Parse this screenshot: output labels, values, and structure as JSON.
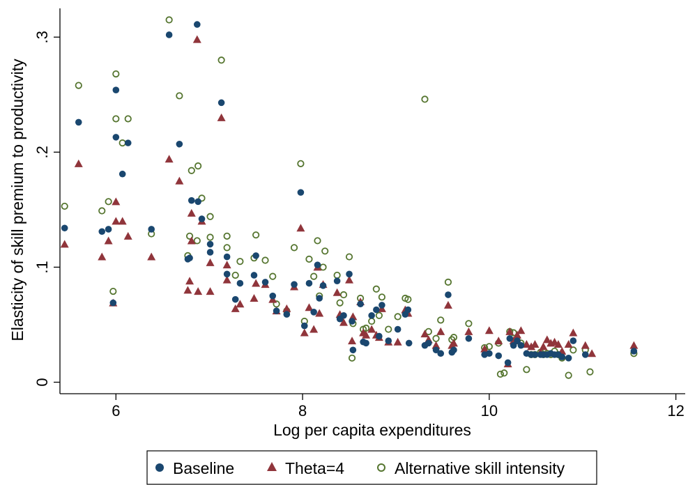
{
  "chart_data": {
    "type": "scatter",
    "xlabel": "Log per capita expenditures",
    "ylabel": "Elasticity of skill premium to productivity",
    "xlim": [
      5.4,
      12.1
    ],
    "ylim": [
      -0.01,
      0.325
    ],
    "xticks": [
      6,
      8,
      10,
      12
    ],
    "xtick_labels": [
      "6",
      "8",
      "10",
      "12"
    ],
    "yticks": [
      0,
      0.1,
      0.2,
      0.3
    ],
    "ytick_labels": [
      "0",
      ".1",
      ".2",
      ".3"
    ],
    "grid": false,
    "legend_position": "bottom",
    "series": [
      {
        "name": "Baseline",
        "marker": "circle-filled",
        "color": "#1a476f",
        "points": [
          [
            5.45,
            0.134
          ],
          [
            5.6,
            0.226
          ],
          [
            5.85,
            0.131
          ],
          [
            5.92,
            0.133
          ],
          [
            5.97,
            0.069
          ],
          [
            6.0,
            0.254
          ],
          [
            6.0,
            0.213
          ],
          [
            6.07,
            0.181
          ],
          [
            6.13,
            0.208
          ],
          [
            6.38,
            0.133
          ],
          [
            6.57,
            0.302
          ],
          [
            6.68,
            0.207
          ],
          [
            6.77,
            0.107
          ],
          [
            6.79,
            0.108
          ],
          [
            6.81,
            0.158
          ],
          [
            6.87,
            0.311
          ],
          [
            6.88,
            0.157
          ],
          [
            6.92,
            0.142
          ],
          [
            7.01,
            0.12
          ],
          [
            7.01,
            0.113
          ],
          [
            7.13,
            0.243
          ],
          [
            7.19,
            0.109
          ],
          [
            7.19,
            0.094
          ],
          [
            7.28,
            0.072
          ],
          [
            7.33,
            0.086
          ],
          [
            7.48,
            0.093
          ],
          [
            7.5,
            0.11
          ],
          [
            7.6,
            0.087
          ],
          [
            7.68,
            0.075
          ],
          [
            7.72,
            0.062
          ],
          [
            7.83,
            0.059
          ],
          [
            7.91,
            0.085
          ],
          [
            7.98,
            0.165
          ],
          [
            8.02,
            0.049
          ],
          [
            8.07,
            0.086
          ],
          [
            8.12,
            0.061
          ],
          [
            8.16,
            0.102
          ],
          [
            8.18,
            0.073
          ],
          [
            8.22,
            0.084
          ],
          [
            8.37,
            0.088
          ],
          [
            8.4,
            0.055
          ],
          [
            8.44,
            0.058
          ],
          [
            8.5,
            0.094
          ],
          [
            8.53,
            0.053
          ],
          [
            8.54,
            0.028
          ],
          [
            8.62,
            0.068
          ],
          [
            8.65,
            0.035
          ],
          [
            8.68,
            0.034
          ],
          [
            8.74,
            0.058
          ],
          [
            8.79,
            0.063
          ],
          [
            8.82,
            0.04
          ],
          [
            8.85,
            0.067
          ],
          [
            8.92,
            0.036
          ],
          [
            9.02,
            0.046
          ],
          [
            9.1,
            0.059
          ],
          [
            9.13,
            0.063
          ],
          [
            9.14,
            0.034
          ],
          [
            9.31,
            0.032
          ],
          [
            9.35,
            0.034
          ],
          [
            9.43,
            0.028
          ],
          [
            9.48,
            0.025
          ],
          [
            9.56,
            0.076
          ],
          [
            9.6,
            0.026
          ],
          [
            9.62,
            0.028
          ],
          [
            9.78,
            0.038
          ],
          [
            9.95,
            0.024
          ],
          [
            10.0,
            0.025
          ],
          [
            10.1,
            0.023
          ],
          [
            10.2,
            0.017
          ],
          [
            10.22,
            0.038
          ],
          [
            10.26,
            0.032
          ],
          [
            10.3,
            0.036
          ],
          [
            10.34,
            0.032
          ],
          [
            10.4,
            0.025
          ],
          [
            10.45,
            0.024
          ],
          [
            10.49,
            0.024
          ],
          [
            10.55,
            0.024
          ],
          [
            10.58,
            0.024
          ],
          [
            10.62,
            0.024
          ],
          [
            10.66,
            0.025
          ],
          [
            10.7,
            0.024
          ],
          [
            10.74,
            0.024
          ],
          [
            10.78,
            0.022
          ],
          [
            10.85,
            0.021
          ],
          [
            10.9,
            0.036
          ],
          [
            11.03,
            0.024
          ],
          [
            11.55,
            0.027
          ]
        ]
      },
      {
        "name": "Theta=4",
        "marker": "triangle-filled",
        "color": "#90353b",
        "points": [
          [
            5.45,
            0.12
          ],
          [
            5.6,
            0.19
          ],
          [
            5.85,
            0.109
          ],
          [
            5.92,
            0.123
          ],
          [
            5.97,
            0.069
          ],
          [
            6.0,
            0.14
          ],
          [
            6.0,
            0.157
          ],
          [
            6.07,
            0.14
          ],
          [
            6.13,
            0.127
          ],
          [
            6.38,
            0.109
          ],
          [
            6.57,
            0.194
          ],
          [
            6.68,
            0.175
          ],
          [
            6.77,
            0.08
          ],
          [
            6.79,
            0.088
          ],
          [
            6.81,
            0.123
          ],
          [
            6.81,
            0.147
          ],
          [
            6.87,
            0.298
          ],
          [
            6.88,
            0.079
          ],
          [
            6.92,
            0.14
          ],
          [
            7.01,
            0.104
          ],
          [
            7.01,
            0.079
          ],
          [
            7.13,
            0.23
          ],
          [
            7.19,
            0.102
          ],
          [
            7.19,
            0.089
          ],
          [
            7.28,
            0.064
          ],
          [
            7.33,
            0.068
          ],
          [
            7.48,
            0.073
          ],
          [
            7.5,
            0.086
          ],
          [
            7.6,
            0.085
          ],
          [
            7.68,
            0.072
          ],
          [
            7.72,
            0.062
          ],
          [
            7.83,
            0.064
          ],
          [
            7.91,
            0.083
          ],
          [
            7.98,
            0.134
          ],
          [
            8.02,
            0.043
          ],
          [
            8.07,
            0.065
          ],
          [
            8.12,
            0.046
          ],
          [
            8.16,
            0.1
          ],
          [
            8.18,
            0.06
          ],
          [
            8.22,
            0.085
          ],
          [
            8.37,
            0.078
          ],
          [
            8.4,
            0.059
          ],
          [
            8.44,
            0.052
          ],
          [
            8.5,
            0.089
          ],
          [
            8.53,
            0.036
          ],
          [
            8.54,
            0.057
          ],
          [
            8.62,
            0.07
          ],
          [
            8.65,
            0.043
          ],
          [
            8.68,
            0.041
          ],
          [
            8.74,
            0.046
          ],
          [
            8.79,
            0.041
          ],
          [
            8.82,
            0.039
          ],
          [
            8.85,
            0.064
          ],
          [
            8.92,
            0.035
          ],
          [
            9.02,
            0.035
          ],
          [
            9.1,
            0.063
          ],
          [
            9.13,
            0.06
          ],
          [
            9.31,
            0.042
          ],
          [
            9.35,
            0.037
          ],
          [
            9.43,
            0.032
          ],
          [
            9.48,
            0.044
          ],
          [
            9.56,
            0.067
          ],
          [
            9.6,
            0.032
          ],
          [
            9.62,
            0.034
          ],
          [
            9.78,
            0.044
          ],
          [
            9.95,
            0.029
          ],
          [
            10.0,
            0.045
          ],
          [
            10.1,
            0.036
          ],
          [
            10.2,
            0.016
          ],
          [
            10.22,
            0.044
          ],
          [
            10.26,
            0.036
          ],
          [
            10.3,
            0.041
          ],
          [
            10.34,
            0.045
          ],
          [
            10.4,
            0.033
          ],
          [
            10.45,
            0.031
          ],
          [
            10.49,
            0.033
          ],
          [
            10.55,
            0.026
          ],
          [
            10.58,
            0.031
          ],
          [
            10.62,
            0.037
          ],
          [
            10.66,
            0.034
          ],
          [
            10.7,
            0.035
          ],
          [
            10.74,
            0.033
          ],
          [
            10.78,
            0.027
          ],
          [
            10.85,
            0.033
          ],
          [
            10.9,
            0.043
          ],
          [
            11.03,
            0.032
          ],
          [
            11.1,
            0.025
          ],
          [
            11.55,
            0.032
          ]
        ]
      },
      {
        "name": "Alternative skill intensity",
        "marker": "circle-hollow",
        "color": "#55752f",
        "points": [
          [
            5.45,
            0.153
          ],
          [
            5.6,
            0.258
          ],
          [
            5.85,
            0.149
          ],
          [
            5.92,
            0.157
          ],
          [
            5.97,
            0.079
          ],
          [
            6.0,
            0.268
          ],
          [
            6.0,
            0.229
          ],
          [
            6.07,
            0.208
          ],
          [
            6.13,
            0.229
          ],
          [
            6.38,
            0.129
          ],
          [
            6.57,
            0.315
          ],
          [
            6.68,
            0.249
          ],
          [
            6.77,
            0.11
          ],
          [
            6.79,
            0.127
          ],
          [
            6.81,
            0.184
          ],
          [
            6.87,
            0.123
          ],
          [
            6.88,
            0.188
          ],
          [
            6.92,
            0.16
          ],
          [
            7.01,
            0.144
          ],
          [
            7.01,
            0.126
          ],
          [
            7.13,
            0.28
          ],
          [
            7.19,
            0.127
          ],
          [
            7.19,
            0.117
          ],
          [
            7.28,
            0.093
          ],
          [
            7.33,
            0.105
          ],
          [
            7.48,
            0.108
          ],
          [
            7.5,
            0.128
          ],
          [
            7.6,
            0.106
          ],
          [
            7.68,
            0.092
          ],
          [
            7.72,
            0.068
          ],
          [
            7.83,
            0.062
          ],
          [
            7.91,
            0.117
          ],
          [
            7.98,
            0.19
          ],
          [
            8.02,
            0.053
          ],
          [
            8.07,
            0.107
          ],
          [
            8.12,
            0.092
          ],
          [
            8.16,
            0.123
          ],
          [
            8.18,
            0.075
          ],
          [
            8.22,
            0.1
          ],
          [
            8.24,
            0.114
          ],
          [
            8.37,
            0.093
          ],
          [
            8.4,
            0.069
          ],
          [
            8.44,
            0.076
          ],
          [
            8.5,
            0.109
          ],
          [
            8.53,
            0.021
          ],
          [
            8.54,
            0.051
          ],
          [
            8.62,
            0.073
          ],
          [
            8.65,
            0.046
          ],
          [
            8.68,
            0.047
          ],
          [
            8.74,
            0.053
          ],
          [
            8.79,
            0.081
          ],
          [
            8.82,
            0.058
          ],
          [
            8.85,
            0.074
          ],
          [
            8.92,
            0.046
          ],
          [
            9.02,
            0.057
          ],
          [
            9.1,
            0.073
          ],
          [
            9.13,
            0.072
          ],
          [
            9.31,
            0.246
          ],
          [
            9.35,
            0.044
          ],
          [
            9.43,
            0.038
          ],
          [
            9.48,
            0.054
          ],
          [
            9.56,
            0.087
          ],
          [
            9.6,
            0.037
          ],
          [
            9.62,
            0.039
          ],
          [
            9.78,
            0.051
          ],
          [
            9.95,
            0.03
          ],
          [
            10.0,
            0.031
          ],
          [
            10.1,
            0.034
          ],
          [
            10.12,
            0.007
          ],
          [
            10.16,
            0.008
          ],
          [
            10.22,
            0.044
          ],
          [
            10.26,
            0.043
          ],
          [
            10.3,
            0.036
          ],
          [
            10.34,
            0.034
          ],
          [
            10.4,
            0.011
          ],
          [
            10.45,
            0.024
          ],
          [
            10.49,
            0.024
          ],
          [
            10.55,
            0.026
          ],
          [
            10.58,
            0.024
          ],
          [
            10.62,
            0.025
          ],
          [
            10.66,
            0.024
          ],
          [
            10.7,
            0.027
          ],
          [
            10.74,
            0.024
          ],
          [
            10.78,
            0.021
          ],
          [
            10.85,
            0.006
          ],
          [
            10.9,
            0.028
          ],
          [
            11.03,
            0.028
          ],
          [
            11.08,
            0.009
          ],
          [
            11.55,
            0.025
          ]
        ]
      }
    ]
  }
}
